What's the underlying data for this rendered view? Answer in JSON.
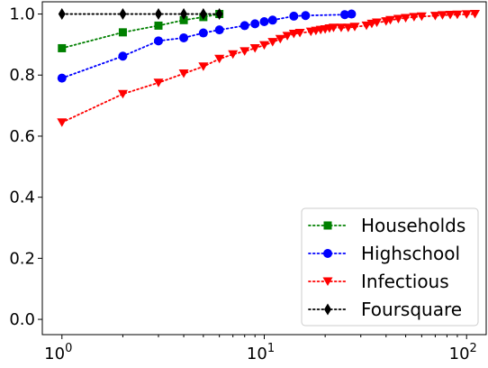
{
  "chart_data": {
    "type": "line",
    "xscale": "log",
    "xlim": [
      0.8,
      125
    ],
    "ylim": [
      -0.05,
      1.04
    ],
    "x_ticks": [
      {
        "value": 1,
        "base": "10",
        "exp": "0"
      },
      {
        "value": 10,
        "base": "10",
        "exp": "1"
      },
      {
        "value": 100,
        "base": "10",
        "exp": "2"
      }
    ],
    "y_ticks": [
      {
        "value": 0.0,
        "label": "0.0"
      },
      {
        "value": 0.2,
        "label": "0.2"
      },
      {
        "value": 0.4,
        "label": "0.4"
      },
      {
        "value": 0.6,
        "label": "0.6"
      },
      {
        "value": 0.8,
        "label": "0.8"
      },
      {
        "value": 1.0,
        "label": "1.0"
      }
    ],
    "grid": false,
    "legend_position": "bottom-right",
    "series": [
      {
        "name": "Households",
        "color": "#008000",
        "marker": "square",
        "linestyle": "dotted",
        "x": [
          1,
          2,
          3,
          4,
          5,
          6
        ],
        "y": [
          0.888,
          0.94,
          0.962,
          0.98,
          0.99,
          1.0
        ]
      },
      {
        "name": "Highschool",
        "color": "#0000ff",
        "marker": "circle",
        "linestyle": "dotted",
        "x": [
          1,
          2,
          3,
          4,
          5,
          6,
          8,
          9,
          10,
          11,
          14,
          16,
          25,
          27
        ],
        "y": [
          0.79,
          0.862,
          0.912,
          0.922,
          0.938,
          0.948,
          0.962,
          0.968,
          0.975,
          0.98,
          0.993,
          0.995,
          0.998,
          1.0
        ]
      },
      {
        "name": "Infectious",
        "color": "#ff0000",
        "marker": "triangle-down",
        "linestyle": "dotted",
        "x": [
          1,
          2,
          3,
          4,
          5,
          6,
          7,
          8,
          9,
          10,
          11,
          12,
          13,
          14,
          15,
          17,
          18,
          19,
          20,
          21,
          22,
          24,
          26,
          28,
          32,
          34,
          36,
          40,
          42,
          46,
          50,
          55,
          60,
          70,
          76,
          83,
          90,
          100,
          110
        ],
        "y": [
          0.645,
          0.738,
          0.775,
          0.805,
          0.828,
          0.853,
          0.868,
          0.878,
          0.888,
          0.898,
          0.908,
          0.918,
          0.928,
          0.935,
          0.938,
          0.942,
          0.945,
          0.948,
          0.95,
          0.953,
          0.955,
          0.955,
          0.955,
          0.958,
          0.962,
          0.968,
          0.972,
          0.976,
          0.98,
          0.984,
          0.987,
          0.99,
          0.992,
          0.994,
          0.996,
          0.997,
          0.998,
          0.999,
          1.0
        ]
      },
      {
        "name": "Foursquare",
        "color": "#000000",
        "marker": "diamond",
        "linestyle": "dotted",
        "x": [
          1,
          2,
          3,
          4,
          5,
          6
        ],
        "y": [
          1.0,
          1.0,
          1.0,
          1.0,
          1.0,
          1.0
        ]
      }
    ]
  }
}
